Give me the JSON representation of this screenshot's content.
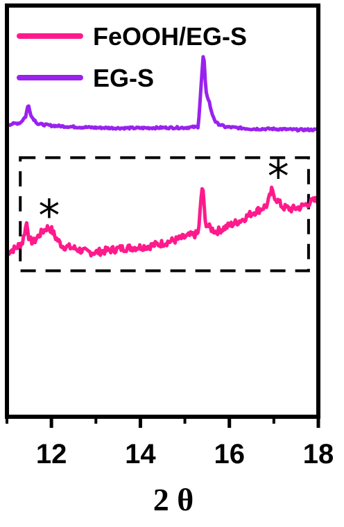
{
  "chart_data": {
    "type": "line",
    "title": "",
    "xlabel": "2 θ",
    "ylabel": "",
    "xlim": [
      11,
      18
    ],
    "ylim": [
      0,
      10
    ],
    "x_ticks": [
      "12",
      "14",
      "16",
      "18"
    ],
    "x_tick_values": [
      12,
      14,
      16,
      18
    ],
    "grid": false,
    "legend_position": "top-left",
    "series": [
      {
        "name": "FeOOH/EG-S",
        "color": "#ff1a8c",
        "points": [
          [
            11.0,
            4.0
          ],
          [
            11.2,
            4.1
          ],
          [
            11.35,
            4.25
          ],
          [
            11.45,
            4.75
          ],
          [
            11.5,
            4.3
          ],
          [
            11.6,
            4.25
          ],
          [
            11.75,
            4.45
          ],
          [
            11.9,
            4.6
          ],
          [
            12.0,
            4.55
          ],
          [
            12.1,
            4.35
          ],
          [
            12.25,
            4.15
          ],
          [
            12.5,
            4.1
          ],
          [
            12.8,
            4.0
          ],
          [
            13.0,
            4.0
          ],
          [
            13.3,
            4.05
          ],
          [
            13.6,
            4.1
          ],
          [
            13.9,
            4.12
          ],
          [
            14.2,
            4.15
          ],
          [
            14.5,
            4.22
          ],
          [
            14.8,
            4.3
          ],
          [
            15.1,
            4.4
          ],
          [
            15.3,
            4.45
          ],
          [
            15.37,
            5.35
          ],
          [
            15.4,
            5.7
          ],
          [
            15.45,
            4.75
          ],
          [
            15.55,
            4.6
          ],
          [
            15.7,
            4.5
          ],
          [
            15.9,
            4.6
          ],
          [
            16.1,
            4.7
          ],
          [
            16.3,
            4.8
          ],
          [
            16.5,
            4.95
          ],
          [
            16.7,
            5.05
          ],
          [
            16.85,
            5.15
          ],
          [
            16.95,
            5.5
          ],
          [
            17.05,
            5.3
          ],
          [
            17.2,
            5.1
          ],
          [
            17.4,
            5.05
          ],
          [
            17.6,
            5.1
          ],
          [
            17.8,
            5.2
          ],
          [
            18.0,
            5.3
          ]
        ],
        "noise": 0.09
      },
      {
        "name": "EG-S",
        "color": "#9922ee",
        "points": [
          [
            11.0,
            7.1
          ],
          [
            11.3,
            7.15
          ],
          [
            11.42,
            7.3
          ],
          [
            11.48,
            7.6
          ],
          [
            11.55,
            7.3
          ],
          [
            11.7,
            7.12
          ],
          [
            12.0,
            7.08
          ],
          [
            12.5,
            7.05
          ],
          [
            13.0,
            7.03
          ],
          [
            13.5,
            7.02
          ],
          [
            14.0,
            7.02
          ],
          [
            14.5,
            7.03
          ],
          [
            15.0,
            7.03
          ],
          [
            15.3,
            7.05
          ],
          [
            15.38,
            8.3
          ],
          [
            15.42,
            8.9
          ],
          [
            15.47,
            7.9
          ],
          [
            15.55,
            7.65
          ],
          [
            15.6,
            7.4
          ],
          [
            15.7,
            7.15
          ],
          [
            15.9,
            7.05
          ],
          [
            16.5,
            7.0
          ],
          [
            17.0,
            7.0
          ],
          [
            17.5,
            6.98
          ],
          [
            18.0,
            6.98
          ]
        ],
        "noise": 0.025
      }
    ],
    "annotations": [
      {
        "type": "dashed-rectangle",
        "x0": 11.3,
        "x1": 17.78,
        "y0": 3.55,
        "y1": 6.3
      },
      {
        "type": "text",
        "text": "*",
        "x": 11.95,
        "y": 5.0
      },
      {
        "type": "text",
        "text": "*",
        "x": 17.1,
        "y": 5.95
      }
    ]
  }
}
